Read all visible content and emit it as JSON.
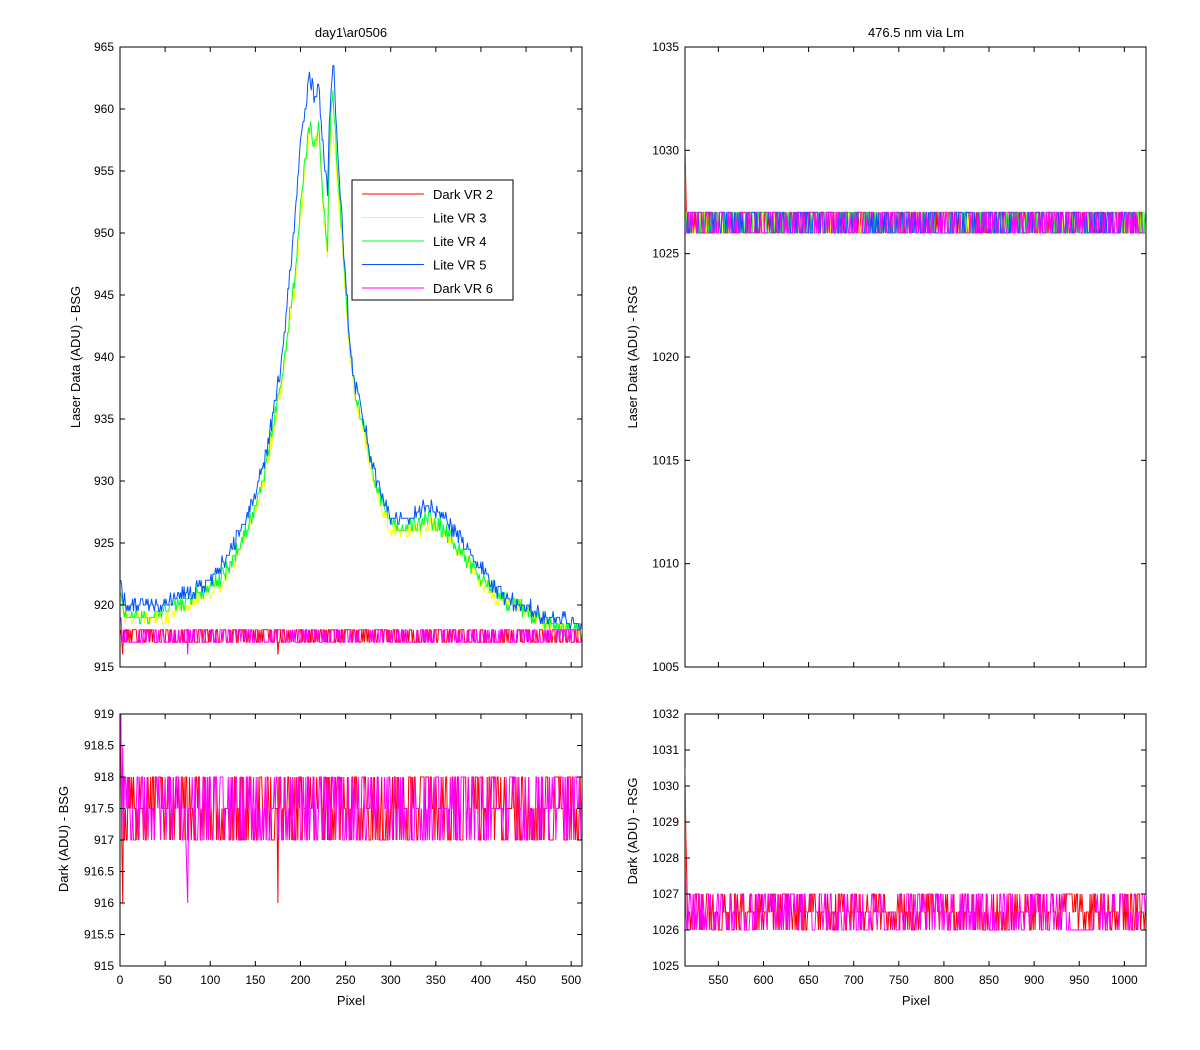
{
  "chart_data": [
    {
      "id": "top_left",
      "type": "line",
      "title": "day1\\ar0506",
      "xlabel": "",
      "ylabel": "Laser Data (ADU) - BSG",
      "xlim": [
        0,
        512
      ],
      "ylim": [
        915,
        965
      ],
      "xticks": [
        0,
        50,
        100,
        150,
        200,
        250,
        300,
        350,
        400,
        450,
        500
      ],
      "show_xticklabels": false,
      "yticks": [
        915,
        920,
        925,
        930,
        935,
        940,
        945,
        950,
        955,
        960,
        965
      ],
      "grid": false,
      "legend": {
        "position": "inside-upper-center",
        "entries": [
          {
            "label": "Dark VR 2",
            "color": "#ff0000"
          },
          {
            "label": "Lite VR 3",
            "color": "#ffff00"
          },
          {
            "label": "Lite VR 4",
            "color": "#00ff33"
          },
          {
            "label": "Lite VR 5",
            "color": "#0055ff"
          },
          {
            "label": "Dark VR 6",
            "color": "#ff00ff"
          }
        ]
      },
      "series": [
        {
          "name": "Dark VR 2",
          "color": "#ff0000",
          "kind": "noise",
          "x_range": [
            1,
            512
          ],
          "levels": [
            917,
            918
          ],
          "spikes": [
            [
              1,
              918
            ],
            [
              3,
              916
            ],
            [
              175,
              916
            ]
          ]
        },
        {
          "name": "Lite VR 3",
          "color": "#ffff00",
          "kind": "profile",
          "x": [
            1,
            3,
            6,
            10,
            20,
            30,
            40,
            50,
            60,
            70,
            80,
            90,
            100,
            110,
            120,
            130,
            140,
            150,
            160,
            170,
            180,
            190,
            195,
            200,
            205,
            210,
            215,
            220,
            225,
            230,
            232,
            234,
            236,
            238,
            240,
            245,
            250,
            255,
            260,
            270,
            280,
            290,
            300,
            310,
            320,
            330,
            340,
            350,
            360,
            370,
            380,
            390,
            400,
            410,
            420,
            430,
            440,
            450,
            460,
            470,
            480,
            490,
            500,
            512
          ],
          "y": [
            921,
            920,
            919,
            919,
            919,
            919,
            919,
            919,
            919.5,
            920,
            920,
            920.5,
            921,
            921.5,
            922.5,
            924,
            925.5,
            927.5,
            930,
            934,
            938,
            944,
            946,
            951,
            955,
            958,
            957,
            958,
            952,
            948,
            955,
            958,
            958,
            957,
            955,
            950,
            945,
            940,
            937,
            934,
            930,
            928,
            926,
            926,
            926,
            926,
            926.5,
            926.5,
            926,
            925,
            924,
            923,
            922,
            921,
            920.5,
            920,
            920,
            919.5,
            919,
            918.5,
            918,
            918,
            918,
            918
          ]
        },
        {
          "name": "Lite VR 4",
          "color": "#00ff33",
          "kind": "profile",
          "x": [
            1,
            3,
            6,
            10,
            20,
            30,
            40,
            50,
            60,
            70,
            80,
            90,
            100,
            110,
            120,
            130,
            140,
            150,
            160,
            170,
            180,
            190,
            195,
            200,
            205,
            210,
            215,
            220,
            225,
            230,
            232,
            234,
            236,
            238,
            240,
            245,
            250,
            255,
            260,
            270,
            280,
            290,
            300,
            310,
            320,
            330,
            340,
            350,
            360,
            370,
            380,
            390,
            400,
            410,
            420,
            430,
            440,
            450,
            460,
            470,
            480,
            490,
            500,
            512
          ],
          "y": [
            921,
            920,
            919,
            919,
            919,
            919,
            919,
            919.5,
            920,
            920,
            920.5,
            921,
            921.5,
            922,
            923,
            924.5,
            926,
            928,
            930.5,
            934.5,
            938.5,
            944.5,
            947,
            952,
            956,
            958.5,
            957.5,
            958.5,
            953,
            949,
            956,
            960,
            961,
            959,
            956,
            951,
            945.5,
            940.5,
            937.5,
            934.5,
            930.5,
            928.5,
            926.5,
            926.5,
            926.5,
            926.5,
            927,
            926.5,
            926,
            925,
            924,
            923,
            922,
            921.5,
            921,
            920,
            920,
            919.5,
            919,
            918.5,
            918.5,
            918,
            918,
            918
          ]
        },
        {
          "name": "Lite VR 5",
          "color": "#0055ff",
          "kind": "profile",
          "x": [
            1,
            3,
            6,
            10,
            20,
            30,
            40,
            50,
            60,
            70,
            80,
            90,
            100,
            110,
            120,
            130,
            140,
            150,
            160,
            170,
            180,
            190,
            195,
            200,
            205,
            210,
            215,
            220,
            225,
            230,
            232,
            234,
            236,
            238,
            240,
            245,
            250,
            255,
            260,
            270,
            280,
            290,
            300,
            310,
            320,
            330,
            340,
            350,
            360,
            370,
            380,
            390,
            400,
            410,
            420,
            430,
            440,
            450,
            460,
            470,
            480,
            490,
            500,
            512
          ],
          "y": [
            922,
            921,
            920,
            920,
            920,
            920,
            920,
            920,
            920.5,
            921,
            921,
            921.5,
            922,
            923,
            924,
            925.5,
            927,
            929,
            931.5,
            935.5,
            940,
            948,
            952,
            957,
            960,
            963,
            961,
            962,
            957,
            953,
            959,
            962,
            964,
            962,
            958,
            952,
            946.5,
            941,
            938,
            935,
            931,
            929,
            927,
            927,
            927,
            927.5,
            928,
            927.5,
            927,
            926,
            925,
            924,
            923,
            922,
            921,
            920.5,
            920,
            920,
            919.5,
            919,
            919,
            919,
            918.5,
            918.5
          ]
        },
        {
          "name": "Dark VR 6",
          "color": "#ff00ff",
          "kind": "noise",
          "x_range": [
            1,
            512
          ],
          "levels": [
            917,
            918
          ],
          "spikes": [
            [
              1,
              919
            ],
            [
              2,
              918
            ],
            [
              75,
              916
            ]
          ]
        }
      ]
    },
    {
      "id": "bottom_left",
      "type": "line",
      "title": "",
      "xlabel": "Pixel",
      "ylabel": "Dark (ADU) - BSG",
      "xlim": [
        0,
        512
      ],
      "ylim": [
        915,
        919
      ],
      "xticks": [
        0,
        50,
        100,
        150,
        200,
        250,
        300,
        350,
        400,
        450,
        500
      ],
      "show_xticklabels": true,
      "yticks": [
        915,
        915.5,
        916,
        916.5,
        917,
        917.5,
        918,
        918.5,
        919
      ],
      "grid": false,
      "series": [
        {
          "name": "Dark VR 2",
          "color": "#ff0000",
          "kind": "noise",
          "x_range": [
            1,
            512
          ],
          "levels": [
            917,
            917.5,
            918
          ],
          "spikes": [
            [
              1,
              918.5
            ],
            [
              3,
              916
            ],
            [
              175,
              916
            ]
          ]
        },
        {
          "name": "Dark VR 6",
          "color": "#ff00ff",
          "kind": "noise",
          "x_range": [
            1,
            512
          ],
          "levels": [
            917,
            917.5,
            918
          ],
          "spikes": [
            [
              1,
              919
            ],
            [
              3,
              918.5
            ],
            [
              75,
              916
            ],
            [
              74,
              916.5
            ]
          ]
        }
      ]
    },
    {
      "id": "top_right",
      "type": "line",
      "title": "476.5 nm via Lm",
      "xlabel": "",
      "ylabel": "Laser Data (ADU) - RSG",
      "xlim": [
        513,
        1024
      ],
      "ylim": [
        1005,
        1035
      ],
      "xticks": [
        550,
        600,
        650,
        700,
        750,
        800,
        850,
        900,
        950,
        1000
      ],
      "show_xticklabels": false,
      "yticks": [
        1005,
        1010,
        1015,
        1020,
        1025,
        1030,
        1035
      ],
      "grid": false,
      "series": [
        {
          "name": "Dark VR 2",
          "color": "#ff0000",
          "kind": "noise",
          "x_range": [
            513,
            1024
          ],
          "levels": [
            1026,
            1027
          ],
          "spikes": [
            [
              513,
              1030.5
            ],
            [
              514,
              1028
            ]
          ]
        },
        {
          "name": "Lite VR 3",
          "color": "#ffff00",
          "kind": "noise",
          "x_range": [
            513,
            1024
          ],
          "levels": [
            1026,
            1027
          ],
          "spikes": []
        },
        {
          "name": "Lite VR 4",
          "color": "#00ff33",
          "kind": "noise",
          "x_range": [
            513,
            1024
          ],
          "levels": [
            1026,
            1027
          ],
          "spikes": []
        },
        {
          "name": "Lite VR 5",
          "color": "#0055ff",
          "kind": "noise",
          "x_range": [
            513,
            1024
          ],
          "levels": [
            1026,
            1027
          ],
          "spikes": []
        },
        {
          "name": "Dark VR 6",
          "color": "#ff00ff",
          "kind": "noise",
          "x_range": [
            513,
            1024
          ],
          "levels": [
            1026,
            1027
          ],
          "spikes": [
            [
              513,
              1029
            ]
          ]
        }
      ]
    },
    {
      "id": "bottom_right",
      "type": "line",
      "title": "",
      "xlabel": "Pixel",
      "ylabel": "Dark (ADU) - RSG",
      "xlim": [
        513,
        1024
      ],
      "ylim": [
        1025,
        1032
      ],
      "xticks": [
        550,
        600,
        650,
        700,
        750,
        800,
        850,
        900,
        950,
        1000
      ],
      "show_xticklabels": true,
      "yticks": [
        1025,
        1026,
        1027,
        1028,
        1029,
        1030,
        1031,
        1032
      ],
      "grid": false,
      "series": [
        {
          "name": "Dark VR 2",
          "color": "#ff0000",
          "kind": "noise",
          "x_range": [
            513,
            1024
          ],
          "levels": [
            1026,
            1026.5,
            1027
          ],
          "spikes": [
            [
              513,
              1030.5
            ],
            [
              514,
              1028.5
            ],
            [
              515,
              1027.5
            ]
          ]
        },
        {
          "name": "Dark VR 6",
          "color": "#ff00ff",
          "kind": "noise",
          "x_range": [
            513,
            1024
          ],
          "levels": [
            1026,
            1026.5,
            1027
          ],
          "spikes": [
            [
              513,
              1029.5
            ]
          ],
          "gap": [
            940,
            965
          ]
        }
      ]
    }
  ]
}
